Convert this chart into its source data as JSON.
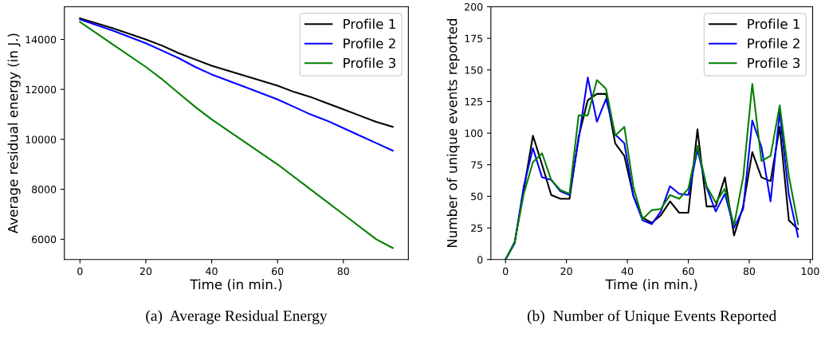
{
  "chart_data": [
    {
      "type": "line",
      "xlabel": "Time (in min.)",
      "ylabel": "Average residual energy (in J.)",
      "annotations": [
        "(a)  Average Residual Energy"
      ],
      "xlim": [
        -4.75,
        99.75
      ],
      "xticks": [
        0,
        20,
        40,
        60,
        80
      ],
      "ylim": [
        5190,
        15310
      ],
      "yticks": [
        6000,
        8000,
        10000,
        12000,
        14000
      ],
      "legend": "top right",
      "grid": false,
      "series": [
        {
          "name": "Profile 1",
          "color": "#000000",
          "x": [
            0,
            10,
            20,
            25,
            30,
            35,
            40,
            50,
            60,
            65,
            70,
            75,
            80,
            85,
            90,
            95
          ],
          "values": [
            14850,
            14450,
            14000,
            13750,
            13450,
            13200,
            12950,
            12550,
            12150,
            11900,
            11700,
            11450,
            11200,
            10950,
            10700,
            10500
          ]
        },
        {
          "name": "Profile 2",
          "color": "#0000ff",
          "x": [
            0,
            10,
            20,
            25,
            30,
            35,
            40,
            50,
            60,
            65,
            70,
            75,
            80,
            85,
            90,
            95
          ],
          "values": [
            14800,
            14350,
            13850,
            13550,
            13250,
            12900,
            12600,
            12100,
            11600,
            11300,
            11000,
            10750,
            10450,
            10150,
            9850,
            9550
          ]
        },
        {
          "name": "Profile 3",
          "color": "#008000",
          "x": [
            0,
            10,
            20,
            25,
            30,
            35,
            40,
            50,
            60,
            70,
            80,
            90,
            95
          ],
          "values": [
            14700,
            13800,
            12900,
            12400,
            11850,
            11300,
            10800,
            9900,
            9000,
            8000,
            7000,
            6000,
            5650
          ]
        }
      ]
    },
    {
      "type": "line",
      "xlabel": "Time (in min.)",
      "ylabel": "Number of unique events reported",
      "annotations": [
        "(b)  Number of Unique Events Reported"
      ],
      "xlim": [
        -4.8,
        100.8
      ],
      "xticks": [
        0,
        20,
        40,
        60,
        80,
        100
      ],
      "ylim": [
        0,
        200
      ],
      "yticks": [
        0,
        25,
        50,
        75,
        100,
        125,
        150,
        175,
        200
      ],
      "legend": "top right",
      "grid": false,
      "x": [
        0,
        3,
        6,
        9,
        12,
        15,
        18,
        21,
        24,
        27,
        30,
        33,
        36,
        39,
        42,
        45,
        48,
        51,
        54,
        57,
        60,
        63,
        66,
        69,
        72,
        75,
        78,
        81,
        84,
        87,
        90,
        93,
        96
      ],
      "series": [
        {
          "name": "Profile 1",
          "color": "#000000",
          "values": [
            0,
            13,
            55,
            98,
            75,
            51,
            48,
            48,
            97,
            126,
            131,
            131,
            92,
            82,
            50,
            33,
            29,
            35,
            46,
            37,
            37,
            103,
            42,
            42,
            65,
            19,
            42,
            85,
            65,
            62,
            105,
            31,
            24
          ]
        },
        {
          "name": "Profile 2",
          "color": "#0000ff",
          "values": [
            0,
            13,
            58,
            88,
            65,
            63,
            54,
            51,
            95,
            144,
            109,
            127,
            99,
            92,
            50,
            31,
            28,
            38,
            58,
            52,
            51,
            87,
            57,
            38,
            52,
            25,
            40,
            110,
            89,
            46,
            117,
            51,
            18
          ]
        },
        {
          "name": "Profile 3",
          "color": "#008000",
          "values": [
            0,
            14,
            52,
            77,
            84,
            63,
            55,
            52,
            114,
            114,
            142,
            135,
            98,
            105,
            57,
            32,
            39,
            40,
            51,
            48,
            56,
            90,
            58,
            45,
            56,
            27,
            65,
            139,
            78,
            82,
            122,
            66,
            28
          ]
        }
      ]
    }
  ]
}
